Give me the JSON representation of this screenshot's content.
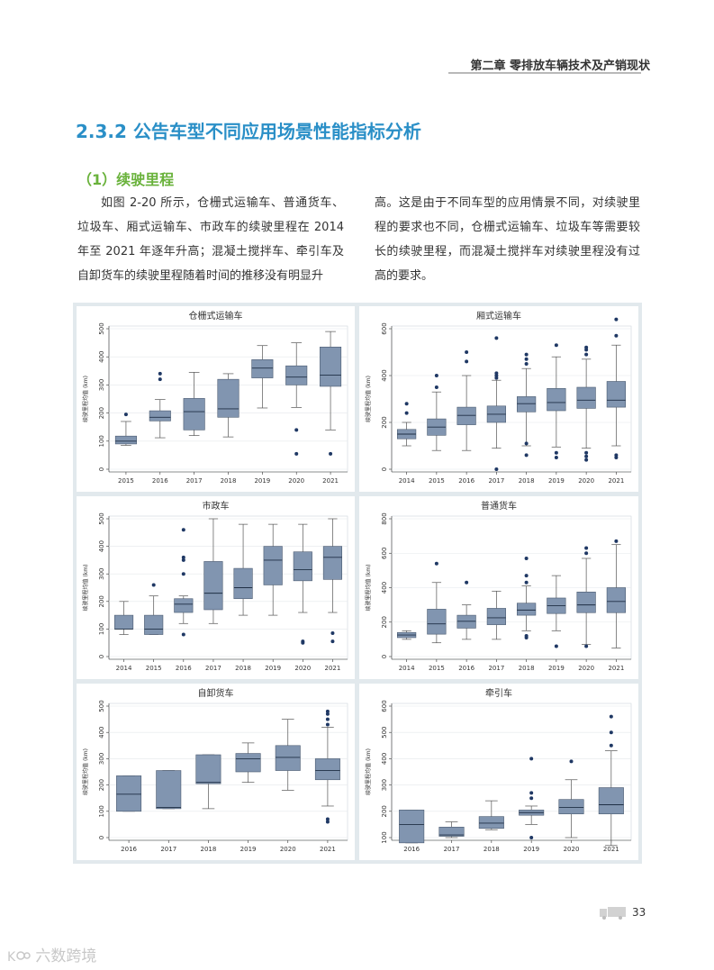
{
  "header": {
    "chapter_title": "第二章 零排放车辆技术及产销现状"
  },
  "section": {
    "title": "2.3.2 公告车型不同应用场景性能指标分析"
  },
  "subsection": {
    "title": "（1）续驶里程"
  },
  "body": {
    "left_paragraph": "如图 2-20 所示，仓栅式运输车、普通货车、垃圾车、厢式运输车、市政车的续驶里程在 2014 年至 2021 年逐年升高；混凝土搅拌车、牵引车及自卸货车的续驶里程随着时间的推移没有明显升",
    "right_paragraph": "高。这是由于不同车型的应用情景不同，对续驶里程的要求也不同，仓栅式运输车、垃圾车等需要较长的续驶里程，而混凝土搅拌车对续驶里程没有过高的要求。"
  },
  "footer": {
    "page_number": "33",
    "watermark": "六数跨境"
  },
  "colors": {
    "box_fill": "#8195b0",
    "outlier": "#1f3864",
    "section_blue": "#2a8fc7",
    "sub_green": "#69b23b",
    "panel_bg": "#e2e9ed"
  },
  "chart_data": [
    {
      "type": "boxplot",
      "title": "仓栅式运输车",
      "ylabel": "续驶里程均值 (km)",
      "ylim": [
        0,
        500
      ],
      "yticks": [
        0,
        100,
        200,
        300,
        400,
        500
      ],
      "categories": [
        "2015",
        "2016",
        "2017",
        "2018",
        "2019",
        "2020",
        "2021"
      ],
      "boxes": [
        {
          "min": 85,
          "q1": 90,
          "median": 100,
          "q3": 118,
          "max": 170,
          "outliers": [
            195
          ]
        },
        {
          "min": 112,
          "q1": 172,
          "median": 185,
          "q3": 208,
          "max": 248,
          "outliers": [
            320,
            340
          ]
        },
        {
          "min": 120,
          "q1": 140,
          "median": 205,
          "q3": 252,
          "max": 345,
          "outliers": []
        },
        {
          "min": 115,
          "q1": 185,
          "median": 215,
          "q3": 320,
          "max": 340,
          "outliers": []
        },
        {
          "min": 218,
          "q1": 325,
          "median": 360,
          "q3": 390,
          "max": 440,
          "outliers": []
        },
        {
          "min": 220,
          "q1": 300,
          "median": 328,
          "q3": 368,
          "max": 450,
          "outliers": [
            140,
            55
          ]
        },
        {
          "min": 140,
          "q1": 295,
          "median": 335,
          "q3": 435,
          "max": 490,
          "outliers": [
            55
          ]
        }
      ]
    },
    {
      "type": "boxplot",
      "title": "厢式运输车",
      "ylabel": "续驶里程均值 (km)",
      "ylim": [
        0,
        600
      ],
      "yticks": [
        0,
        200,
        400,
        600
      ],
      "categories": [
        "2014",
        "2015",
        "2016",
        "2017",
        "2018",
        "2019",
        "2020",
        "2021"
      ],
      "boxes": [
        {
          "min": 100,
          "q1": 130,
          "median": 150,
          "q3": 170,
          "max": 200,
          "outliers": [
            240,
            280
          ]
        },
        {
          "min": 80,
          "q1": 145,
          "median": 180,
          "q3": 215,
          "max": 330,
          "outliers": [
            350,
            400
          ]
        },
        {
          "min": 80,
          "q1": 190,
          "median": 230,
          "q3": 265,
          "max": 400,
          "outliers": [
            460,
            500
          ]
        },
        {
          "min": 90,
          "q1": 200,
          "median": 235,
          "q3": 270,
          "max": 380,
          "outliers": [
            0,
            390,
            400,
            410,
            560
          ]
        },
        {
          "min": 100,
          "q1": 245,
          "median": 280,
          "q3": 310,
          "max": 430,
          "outliers": [
            60,
            110,
            450,
            470,
            490
          ]
        },
        {
          "min": 95,
          "q1": 250,
          "median": 285,
          "q3": 345,
          "max": 480,
          "outliers": [
            50,
            70,
            530
          ]
        },
        {
          "min": 90,
          "q1": 260,
          "median": 295,
          "q3": 350,
          "max": 470,
          "outliers": [
            40,
            55,
            70,
            490,
            510,
            520
          ]
        },
        {
          "min": 100,
          "q1": 265,
          "median": 295,
          "q3": 375,
          "max": 530,
          "outliers": [
            50,
            60,
            570,
            640
          ]
        }
      ]
    },
    {
      "type": "boxplot",
      "title": "市政车",
      "ylabel": "续驶里程均值 (km)",
      "ylim": [
        0,
        500
      ],
      "yticks": [
        0,
        100,
        200,
        300,
        400,
        500
      ],
      "categories": [
        "2014",
        "2015",
        "2016",
        "2017",
        "2018",
        "2019",
        "2020",
        "2021"
      ],
      "boxes": [
        {
          "min": 80,
          "q1": 100,
          "median": 100,
          "q3": 150,
          "max": 200,
          "outliers": []
        },
        {
          "min": 80,
          "q1": 80,
          "median": 100,
          "q3": 150,
          "max": 220,
          "outliers": [
            260
          ]
        },
        {
          "min": 120,
          "q1": 160,
          "median": 190,
          "q3": 210,
          "max": 220,
          "outliers": [
            80,
            300,
            350,
            360,
            460
          ]
        },
        {
          "min": 120,
          "q1": 170,
          "median": 230,
          "q3": 345,
          "max": 500,
          "outliers": []
        },
        {
          "min": 150,
          "q1": 210,
          "median": 250,
          "q3": 320,
          "max": 480,
          "outliers": []
        },
        {
          "min": 150,
          "q1": 260,
          "median": 350,
          "q3": 400,
          "max": 480,
          "outliers": []
        },
        {
          "min": 160,
          "q1": 275,
          "median": 315,
          "q3": 380,
          "max": 480,
          "outliers": [
            50,
            55
          ]
        },
        {
          "min": 160,
          "q1": 280,
          "median": 360,
          "q3": 400,
          "max": 500,
          "outliers": [
            55,
            85
          ]
        }
      ]
    },
    {
      "type": "boxplot",
      "title": "普通货车",
      "ylabel": "续驶里程均值 (km)",
      "ylim": [
        0,
        800
      ],
      "yticks": [
        0,
        200,
        400,
        600,
        800
      ],
      "categories": [
        "2014",
        "2015",
        "2016",
        "2017",
        "2018",
        "2019",
        "2020",
        "2021"
      ],
      "boxes": [
        {
          "min": 100,
          "q1": 110,
          "median": 125,
          "q3": 140,
          "max": 150,
          "outliers": []
        },
        {
          "min": 80,
          "q1": 130,
          "median": 190,
          "q3": 275,
          "max": 430,
          "outliers": [
            540
          ]
        },
        {
          "min": 100,
          "q1": 165,
          "median": 205,
          "q3": 240,
          "max": 300,
          "outliers": [
            430
          ]
        },
        {
          "min": 100,
          "q1": 185,
          "median": 225,
          "q3": 280,
          "max": 380,
          "outliers": []
        },
        {
          "min": 150,
          "q1": 240,
          "median": 270,
          "q3": 310,
          "max": 410,
          "outliers": [
            110,
            120,
            430,
            470,
            570
          ]
        },
        {
          "min": 150,
          "q1": 250,
          "median": 295,
          "q3": 340,
          "max": 470,
          "outliers": [
            60
          ]
        },
        {
          "min": 70,
          "q1": 255,
          "median": 300,
          "q3": 375,
          "max": 570,
          "outliers": [
            60,
            600,
            630
          ]
        },
        {
          "min": 50,
          "q1": 255,
          "median": 320,
          "q3": 400,
          "max": 650,
          "outliers": [
            670
          ]
        }
      ]
    },
    {
      "type": "boxplot",
      "title": "自卸货车",
      "ylabel": "续驶里程均值 (km)",
      "ylim": [
        0,
        500
      ],
      "yticks": [
        0,
        100,
        200,
        300,
        400,
        500
      ],
      "categories": [
        "2016",
        "2017",
        "2018",
        "2019",
        "2020",
        "2021"
      ],
      "boxes": [
        {
          "min": 100,
          "q1": 100,
          "median": 165,
          "q3": 235,
          "max": 235,
          "outliers": []
        },
        {
          "min": 110,
          "q1": 110,
          "median": 115,
          "q3": 255,
          "max": 255,
          "outliers": []
        },
        {
          "min": 110,
          "q1": 205,
          "median": 210,
          "q3": 315,
          "max": 315,
          "outliers": []
        },
        {
          "min": 210,
          "q1": 250,
          "median": 300,
          "q3": 320,
          "max": 360,
          "outliers": []
        },
        {
          "min": 180,
          "q1": 255,
          "median": 305,
          "q3": 350,
          "max": 450,
          "outliers": []
        },
        {
          "min": 120,
          "q1": 220,
          "median": 255,
          "q3": 300,
          "max": 420,
          "outliers": [
            60,
            70,
            430,
            450,
            470,
            480
          ]
        }
      ]
    },
    {
      "type": "boxplot",
      "title": "牵引车",
      "ylabel": "续驶里程均值 (km)",
      "ylim": [
        100,
        600
      ],
      "yticks": [
        100,
        200,
        300,
        400,
        500,
        600
      ],
      "categories": [
        "2016",
        "2017",
        "2018",
        "2019",
        "2020",
        "2021"
      ],
      "boxes": [
        {
          "min": 80,
          "q1": 80,
          "median": 150,
          "q3": 205,
          "max": 205,
          "outliers": []
        },
        {
          "min": 100,
          "q1": 105,
          "median": 110,
          "q3": 140,
          "max": 160,
          "outliers": []
        },
        {
          "min": 130,
          "q1": 135,
          "median": 155,
          "q3": 180,
          "max": 240,
          "outliers": []
        },
        {
          "min": 150,
          "q1": 185,
          "median": 195,
          "q3": 205,
          "max": 220,
          "outliers": [
            100,
            250,
            270,
            400
          ]
        },
        {
          "min": 100,
          "q1": 190,
          "median": 215,
          "q3": 245,
          "max": 320,
          "outliers": [
            390
          ]
        },
        {
          "min": 70,
          "q1": 190,
          "median": 225,
          "q3": 290,
          "max": 430,
          "outliers": [
            450,
            500,
            560
          ]
        }
      ]
    }
  ]
}
